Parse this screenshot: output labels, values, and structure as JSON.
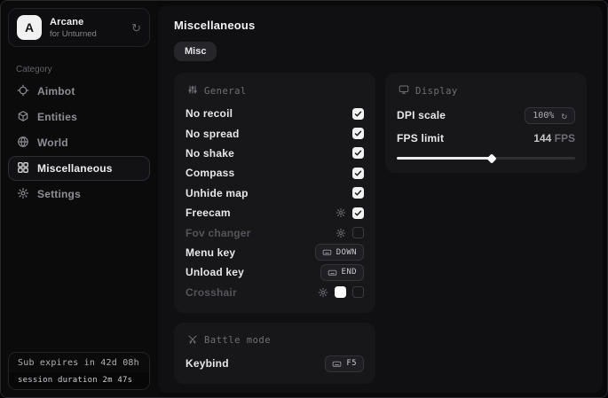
{
  "app": {
    "logo_letter": "A",
    "name": "Arcane",
    "subtitle": "for Unturned"
  },
  "sidebar": {
    "category_label": "Category",
    "items": [
      {
        "label": "Aimbot",
        "active": false
      },
      {
        "label": "Entities",
        "active": false
      },
      {
        "label": "World",
        "active": false
      },
      {
        "label": "Miscellaneous",
        "active": true
      },
      {
        "label": "Settings",
        "active": false
      }
    ],
    "subscription": {
      "expires_text": "Sub expires in 42d 08h",
      "session_text": "session duration 2m 47s"
    }
  },
  "main": {
    "title": "Miscellaneous",
    "tab_label": "Misc",
    "general": {
      "title": "General",
      "rows": [
        {
          "label": "No recoil",
          "checked": true
        },
        {
          "label": "No spread",
          "checked": true
        },
        {
          "label": "No shake",
          "checked": true
        },
        {
          "label": "Compass",
          "checked": true
        },
        {
          "label": "Unhide map",
          "checked": true
        },
        {
          "label": "Freecam",
          "checked": true,
          "has_settings": true
        },
        {
          "label": "Fov changer",
          "checked": false,
          "has_settings": true,
          "enabled": false
        },
        {
          "label": "Menu key",
          "key": "DOWN"
        },
        {
          "label": "Unload key",
          "key": "END"
        },
        {
          "label": "Crosshair",
          "checked": false,
          "has_settings": true,
          "color": "#ffffff",
          "enabled": false
        }
      ]
    },
    "battle": {
      "title": "Battle mode",
      "rows": [
        {
          "label": "Keybind",
          "key": "F5"
        }
      ]
    },
    "display": {
      "title": "Display",
      "dpi": {
        "label": "DPI scale",
        "value": "100%"
      },
      "fps": {
        "label": "FPS limit",
        "value": "144",
        "unit": "FPS",
        "slider_percent": 53
      }
    }
  },
  "colors": {
    "accent_white": "#f2f2f3",
    "card_bg": "#17171a",
    "window_bg": "#09090a"
  }
}
